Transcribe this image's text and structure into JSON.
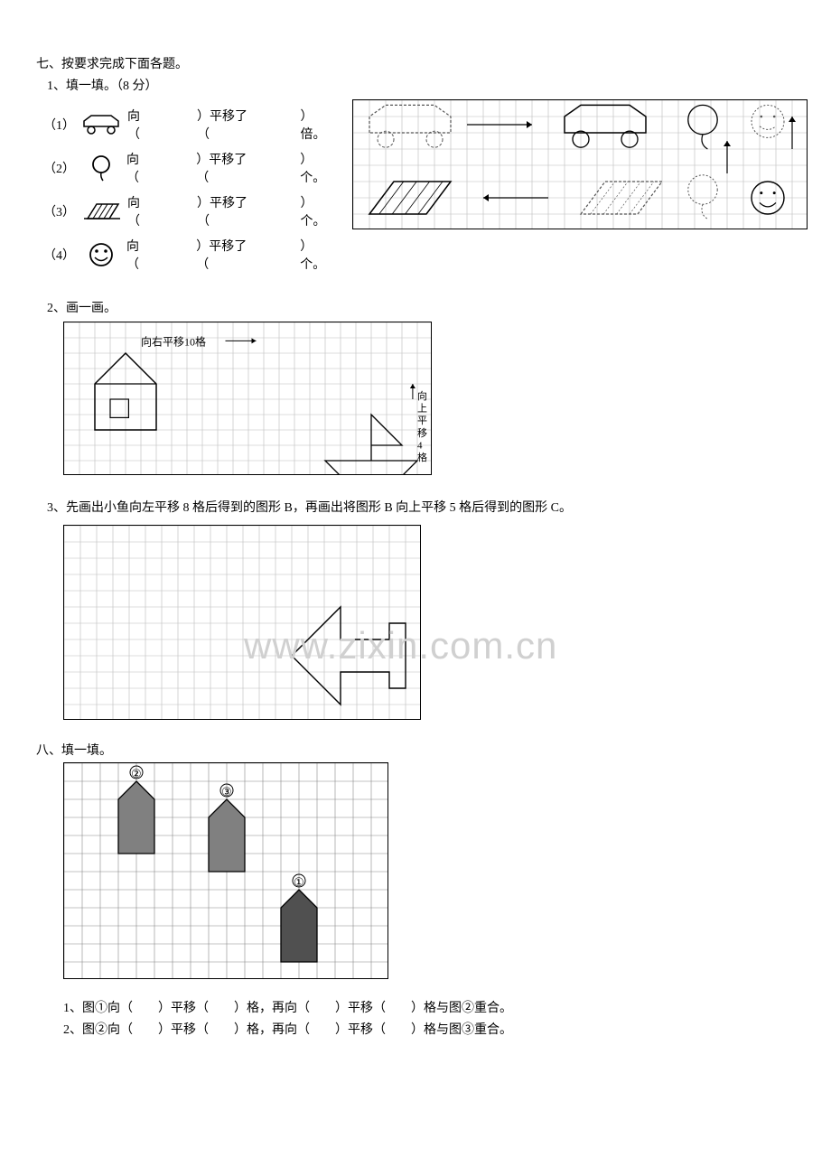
{
  "section7": {
    "title": "七、按要求完成下面各题。",
    "q1": {
      "title": "1、填一填。（8 分）",
      "items": [
        {
          "num": "（1）",
          "text_a": "向（",
          "text_b": "）平移了（",
          "text_c": "）倍。"
        },
        {
          "num": "（2）",
          "text_a": "向（",
          "text_b": "）平移了（",
          "text_c": "）个。"
        },
        {
          "num": "（3）",
          "text_a": "向（",
          "text_b": "）平移了（",
          "text_c": "）个。"
        },
        {
          "num": "（4）",
          "text_a": "向（",
          "text_b": "）平移了（",
          "text_c": "）个。"
        }
      ],
      "right_grid": {
        "cols": 28,
        "rows": 8,
        "cell": 18
      }
    },
    "q2": {
      "title": "2、画一画。",
      "label_right": "向右平移10格",
      "label_up": "向上平移4格",
      "grid": {
        "cols": 24,
        "rows": 10,
        "cell": 17
      }
    },
    "q3": {
      "title": "3、先画出小鱼向左平移 8 格后得到的图形 B，再画出将图形 B 向上平移 5 格后得到的图形 C。",
      "grid": {
        "cols": 22,
        "rows": 12,
        "cell": 18
      },
      "watermark": "www.zixin.com.cn"
    }
  },
  "section8": {
    "title": "八、填一填。",
    "grid": {
      "cols": 18,
      "rows": 12,
      "cell": 20
    },
    "labels": {
      "n1": "①",
      "n2": "②",
      "n3": "③"
    },
    "fills": [
      "1、图①向（　　）平移（　　）格，再向（　　）平移（　　）格与图②重合。",
      "2、图②向（　　）平移（　　）格，再向（　　）平移（　　）格与图③重合。"
    ]
  },
  "colors": {
    "grid_line": "#888888",
    "grid_light": "#bbbbbb",
    "stroke": "#000000",
    "dash": "#555555",
    "fill_gray": "#808080",
    "fill_dark": "#505050"
  }
}
